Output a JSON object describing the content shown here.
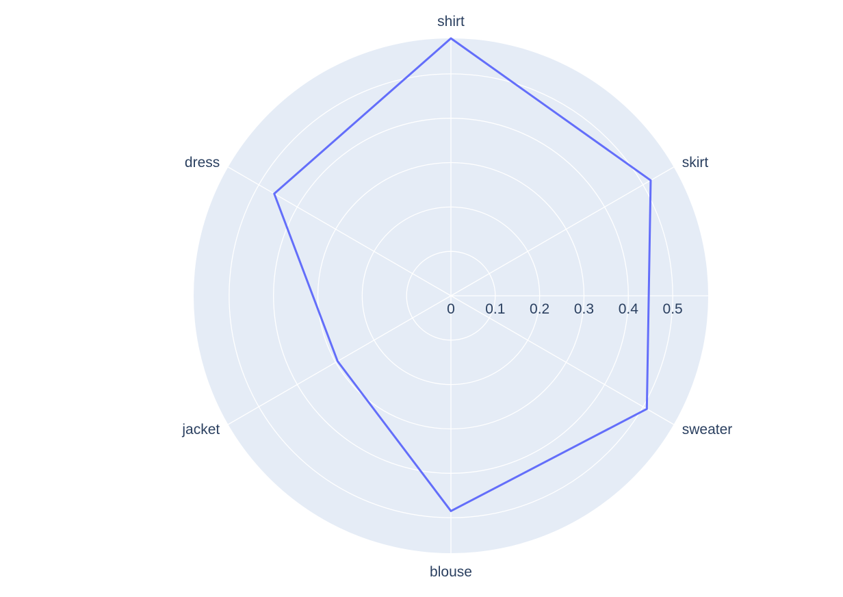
{
  "chart_data": {
    "type": "radar",
    "categories": [
      "shirt",
      "skirt",
      "sweater",
      "blouse",
      "jacket",
      "dress"
    ],
    "series": [
      {
        "values": [
          0.58,
          0.52,
          0.51,
          0.485,
          0.295,
          0.46
        ],
        "color": "#636efa"
      }
    ],
    "radial_range": [
      0,
      0.58
    ],
    "radial_ticks": [
      0,
      0.1,
      0.2,
      0.3,
      0.4,
      0.5
    ],
    "radial_tick_labels": [
      "0",
      "0.1",
      "0.2",
      "0.3",
      "0.4",
      "0.5"
    ],
    "direction": "clockwise",
    "rotation_deg": 90,
    "grid": true,
    "background_color": "#e5ecf6",
    "grid_color": "#ffffff",
    "text_color": "#2a3f5f"
  }
}
